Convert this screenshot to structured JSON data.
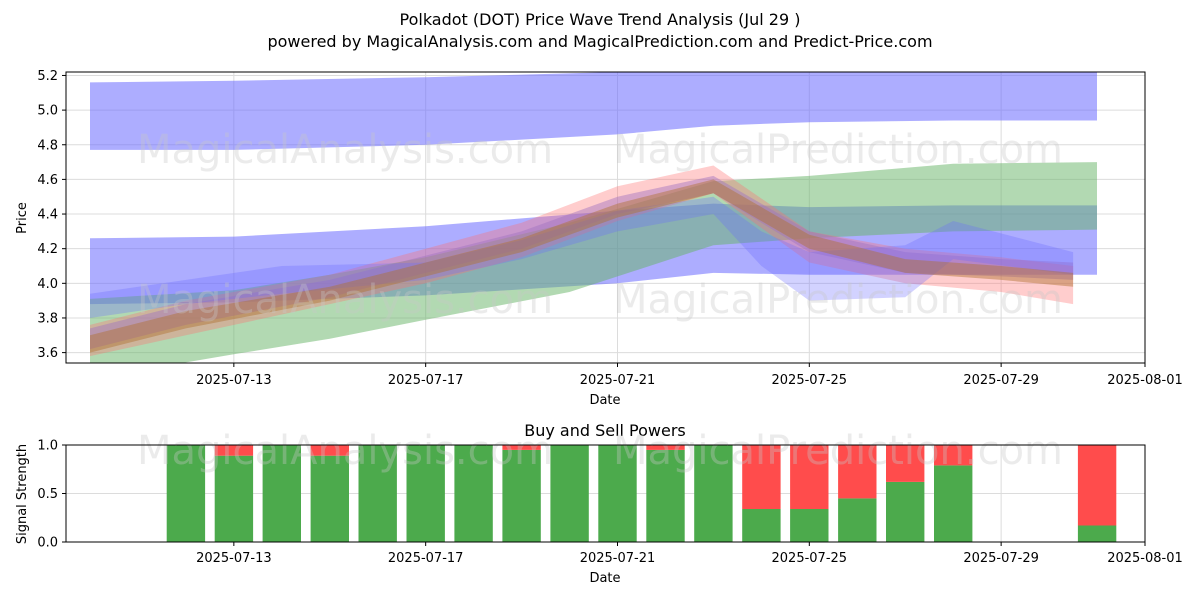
{
  "title": "Polkadot (DOT) Price Wave Trend Analysis (Jul 29 )",
  "subtitle": "powered by MagicalAnalysis.com and MagicalPrediction.com and Predict-Price.com",
  "watermarks": [
    "MagicalAnalysis.com",
    "MagicalPrediction.com"
  ],
  "chart_data": [
    {
      "type": "area",
      "title": "",
      "xlabel": "Date",
      "ylabel": "Price",
      "xlim": [
        "2025-07-09T12:00",
        "2025-08-01"
      ],
      "ylim": [
        3.54,
        5.22
      ],
      "x_ticks": [
        "2025-07-13",
        "2025-07-17",
        "2025-07-21",
        "2025-07-25",
        "2025-07-29",
        "2025-08-01"
      ],
      "y_ticks": [
        3.6,
        3.8,
        4.0,
        4.2,
        4.4,
        4.6,
        4.8,
        5.0,
        5.2
      ],
      "grid": true,
      "bands": [
        {
          "color": "#6a6aff",
          "opacity": 0.55,
          "x": [
            "2025-07-10",
            "2025-07-13",
            "2025-07-17",
            "2025-07-21",
            "2025-07-23",
            "2025-07-25",
            "2025-07-28",
            "2025-07-31"
          ],
          "upper": [
            5.16,
            5.17,
            5.19,
            5.22,
            5.23,
            5.24,
            5.24,
            5.24
          ],
          "lower": [
            4.77,
            4.77,
            4.8,
            4.86,
            4.91,
            4.93,
            4.94,
            4.94
          ]
        },
        {
          "color": "#6a6aff",
          "opacity": 0.55,
          "x": [
            "2025-07-10",
            "2025-07-13",
            "2025-07-17",
            "2025-07-21",
            "2025-07-23",
            "2025-07-25",
            "2025-07-28",
            "2025-07-31"
          ],
          "upper": [
            4.26,
            4.27,
            4.33,
            4.42,
            4.46,
            4.44,
            4.45,
            4.45
          ],
          "lower": [
            3.88,
            3.89,
            3.93,
            4.0,
            4.06,
            4.05,
            4.05,
            4.05
          ]
        },
        {
          "color": "#66b366",
          "opacity": 0.5,
          "x": [
            "2025-07-10",
            "2025-07-13",
            "2025-07-15",
            "2025-07-17",
            "2025-07-20",
            "2025-07-23",
            "2025-07-25",
            "2025-07-28",
            "2025-07-31"
          ],
          "upper": [
            3.91,
            3.96,
            4.05,
            4.15,
            4.35,
            4.59,
            4.62,
            4.69,
            4.7
          ],
          "lower": [
            3.45,
            3.59,
            3.68,
            3.79,
            3.95,
            4.22,
            4.26,
            4.3,
            4.31
          ]
        },
        {
          "color": "#ff7070",
          "opacity": 0.35,
          "x": [
            "2025-07-10",
            "2025-07-12",
            "2025-07-15",
            "2025-07-17",
            "2025-07-19",
            "2025-07-21",
            "2025-07-23",
            "2025-07-25",
            "2025-07-27",
            "2025-07-29",
            "2025-07-30.5"
          ],
          "upper": [
            3.76,
            3.9,
            4.05,
            4.2,
            4.35,
            4.56,
            4.68,
            4.3,
            4.2,
            4.15,
            4.1
          ],
          "lower": [
            3.58,
            3.7,
            3.88,
            4.0,
            4.15,
            4.36,
            4.52,
            4.12,
            4.0,
            3.95,
            3.88
          ]
        },
        {
          "color": "#a070c0",
          "opacity": 0.45,
          "x": [
            "2025-07-10",
            "2025-07-12",
            "2025-07-15",
            "2025-07-17",
            "2025-07-19",
            "2025-07-21",
            "2025-07-23",
            "2025-07-25",
            "2025-07-27",
            "2025-07-29",
            "2025-07-30.5"
          ],
          "upper": [
            3.74,
            3.88,
            4.02,
            4.16,
            4.3,
            4.5,
            4.62,
            4.3,
            4.18,
            4.14,
            4.12
          ],
          "lower": [
            3.62,
            3.76,
            3.92,
            4.06,
            4.2,
            4.4,
            4.52,
            4.18,
            4.06,
            4.04,
            4.02
          ]
        },
        {
          "color": "#6a6aff",
          "opacity": 0.3,
          "x": [
            "2025-07-10",
            "2025-07-12",
            "2025-07-14",
            "2025-07-17",
            "2025-07-19",
            "2025-07-21",
            "2025-07-23",
            "2025-07-24",
            "2025-07-25",
            "2025-07-27",
            "2025-07-28",
            "2025-07-30.5"
          ],
          "upper": [
            3.94,
            4.02,
            4.1,
            4.12,
            4.25,
            4.42,
            4.5,
            4.3,
            4.18,
            4.22,
            4.36,
            4.18
          ],
          "lower": [
            3.8,
            3.88,
            3.94,
            4.02,
            4.14,
            4.3,
            4.4,
            4.1,
            3.9,
            3.92,
            4.14,
            4.05
          ]
        },
        {
          "color": "#b07030",
          "opacity": 0.45,
          "x": [
            "2025-07-10",
            "2025-07-12",
            "2025-07-15",
            "2025-07-17",
            "2025-07-19",
            "2025-07-21",
            "2025-07-23",
            "2025-07-25",
            "2025-07-27",
            "2025-07-29",
            "2025-07-30.5"
          ],
          "upper": [
            3.7,
            3.84,
            3.98,
            4.12,
            4.26,
            4.46,
            4.6,
            4.28,
            4.14,
            4.1,
            4.06
          ],
          "lower": [
            3.6,
            3.74,
            3.9,
            4.04,
            4.18,
            4.38,
            4.52,
            4.2,
            4.06,
            4.02,
            3.98
          ]
        }
      ]
    },
    {
      "type": "bar",
      "title": "Buy and Sell Powers",
      "xlabel": "Date",
      "ylabel": "Signal Strength",
      "xlim": [
        "2025-07-09T12:00",
        "2025-08-01"
      ],
      "ylim": [
        0,
        1
      ],
      "x_ticks": [
        "2025-07-13",
        "2025-07-17",
        "2025-07-21",
        "2025-07-25",
        "2025-07-29",
        "2025-08-01"
      ],
      "y_ticks": [
        "0.0",
        "0.5",
        "1.0"
      ],
      "grid": true,
      "buy_color": "#4caa4c",
      "sell_color": "#ff4c4c",
      "categories": [
        "2025-07-12",
        "2025-07-13",
        "2025-07-14",
        "2025-07-15",
        "2025-07-16",
        "2025-07-17",
        "2025-07-18",
        "2025-07-19",
        "2025-07-20",
        "2025-07-21",
        "2025-07-22",
        "2025-07-23",
        "2025-07-24",
        "2025-07-25",
        "2025-07-26",
        "2025-07-27",
        "2025-07-28",
        "2025-07-31"
      ],
      "series": [
        {
          "name": "Buy",
          "values": [
            1.0,
            0.89,
            1.0,
            0.89,
            1.0,
            1.0,
            1.0,
            0.95,
            1.0,
            1.0,
            0.95,
            1.0,
            0.34,
            0.34,
            0.45,
            0.62,
            0.79,
            0.17
          ]
        },
        {
          "name": "Sell",
          "values": [
            0.0,
            0.11,
            0.0,
            0.11,
            0.0,
            0.0,
            0.0,
            0.05,
            0.0,
            0.0,
            0.05,
            0.0,
            0.66,
            0.66,
            0.55,
            0.38,
            0.21,
            0.83
          ]
        }
      ]
    }
  ]
}
